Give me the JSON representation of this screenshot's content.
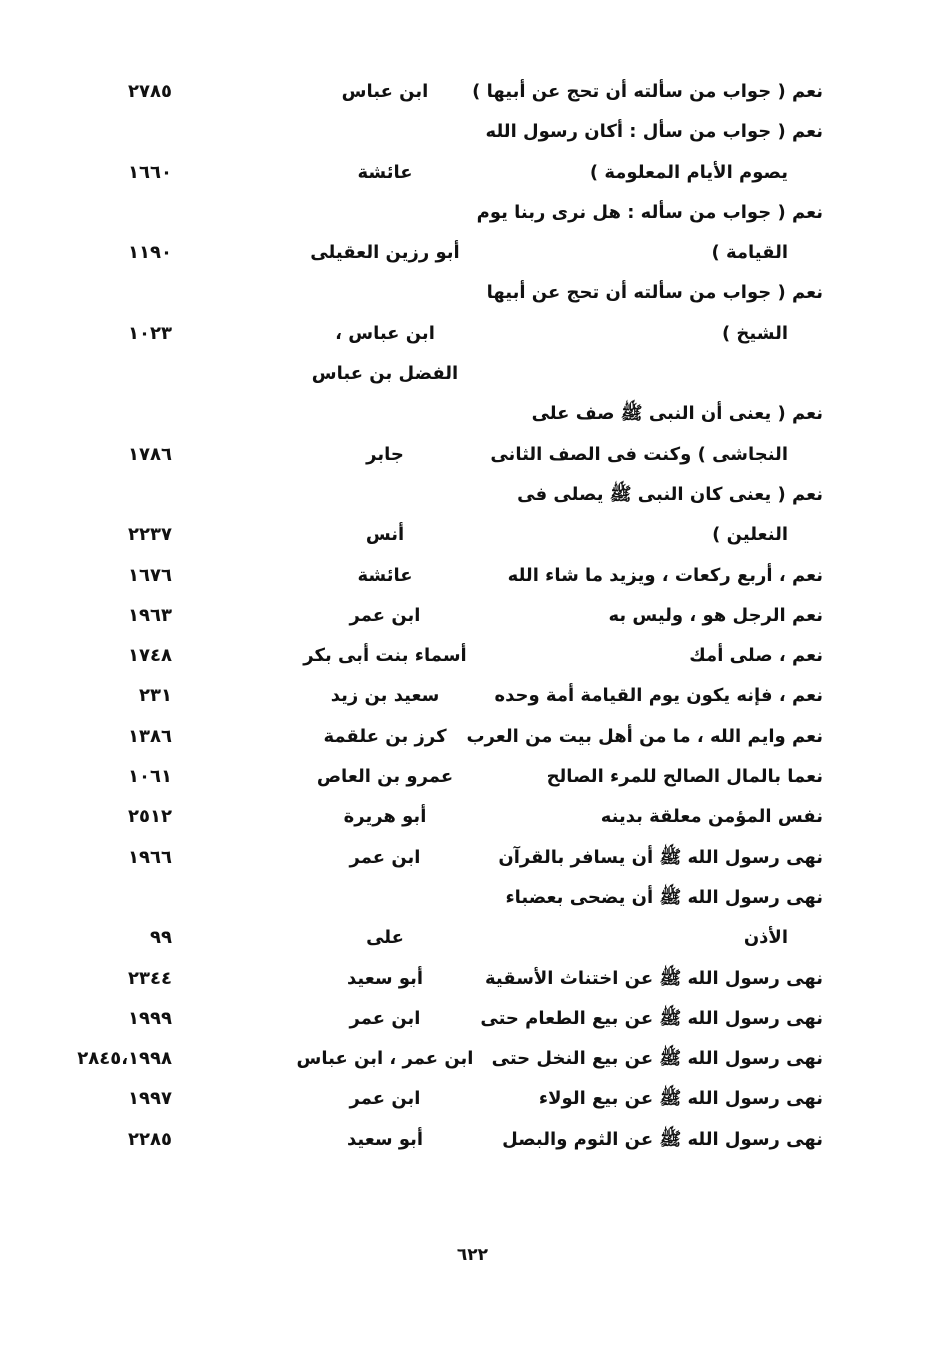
{
  "entries": [
    {
      "text": [
        "نعم ( جواب من سألته أن تحج عن أبيها )"
      ],
      "narrator": [
        "ابن عباس"
      ],
      "ref": "٢٧٨٥"
    },
    {
      "text": [
        "نعم ( جواب من سأل : أكان رسول الله",
        "يصوم الأيام المعلومة )"
      ],
      "narrator": [
        "عائشة"
      ],
      "ref": "١٦٦٠"
    },
    {
      "text": [
        "نعم ( جواب من سأله : هل نرى ربنا يوم",
        "القيامة )"
      ],
      "narrator": [
        "أبو رزين العقيلى"
      ],
      "ref": "١١٩٠"
    },
    {
      "text": [
        "نعم ( جواب من سألته أن تحج عن أبيها",
        "الشيخ )"
      ],
      "narrator": [
        "ابن عباس ،",
        "الفضل بن عباس"
      ],
      "ref": "١٠٢٣"
    },
    {
      "text": [
        "نعم ( يعنى أن النبى ﷺ صف على",
        "النجاشى ) وكنت فى الصف الثانى"
      ],
      "narrator": [
        "جابر"
      ],
      "ref": "١٧٨٦"
    },
    {
      "text": [
        "نعم ( يعنى كان النبى ﷺ يصلى فى",
        "النعلين )"
      ],
      "narrator": [
        "أنس"
      ],
      "ref": "٢٢٣٧"
    },
    {
      "text": [
        "نعم ، أربع ركعات ، ويزيد ما شاء الله"
      ],
      "narrator": [
        "عائشة"
      ],
      "ref": "١٦٧٦"
    },
    {
      "text": [
        "نعم الرجل هو ، وليس به"
      ],
      "narrator": [
        "ابن عمر"
      ],
      "ref": "١٩٦٣"
    },
    {
      "text": [
        "نعم ، صلى أمك"
      ],
      "narrator": [
        "أسماء بنت أبى بكر"
      ],
      "ref": "١٧٤٨"
    },
    {
      "text": [
        "نعم ، فإنه يكون يوم القيامة أمة وحده"
      ],
      "narrator": [
        "سعيد بن زيد"
      ],
      "ref": "٢٣١"
    },
    {
      "text": [
        "نعم وايم الله ، ما من أهل بيت من العرب"
      ],
      "narrator": [
        "كرز بن علقمة"
      ],
      "ref": "١٣٨٦"
    },
    {
      "text": [
        "نعما بالمال الصالح للمرء الصالح"
      ],
      "narrator": [
        "عمرو بن العاص"
      ],
      "ref": "١٠٦١"
    },
    {
      "text": [
        "نفس المؤمن معلقة بدينه"
      ],
      "narrator": [
        "أبو هريرة"
      ],
      "ref": "٢٥١٢"
    },
    {
      "text": [
        "نهى رسول الله ﷺ أن يسافر بالقرآن"
      ],
      "narrator": [
        "ابن عمر"
      ],
      "ref": "١٩٦٦"
    },
    {
      "text": [
        "نهى رسول الله ﷺ أن يضحى بعضباء",
        "الأذن"
      ],
      "narrator": [
        "على"
      ],
      "ref": "٩٩"
    },
    {
      "text": [
        "نهى رسول الله ﷺ عن اختناث الأسقية"
      ],
      "narrator": [
        "أبو سعيد"
      ],
      "ref": "٢٣٤٤"
    },
    {
      "text": [
        "نهى رسول الله ﷺ عن بيع الطعام حتى"
      ],
      "narrator": [
        "ابن عمر"
      ],
      "ref": "١٩٩٩"
    },
    {
      "text": [
        "نهى رسول الله ﷺ عن بيع النخل حتى"
      ],
      "narrator": [
        "ابن عمر ، ابن عباس"
      ],
      "ref": "٢٨٤٥،١٩٩٨"
    },
    {
      "text": [
        "نهى رسول الله ﷺ عن بيع الولاء"
      ],
      "narrator": [
        "ابن عمر"
      ],
      "ref": "١٩٩٧"
    },
    {
      "text": [
        "نهى رسول الله ﷺ عن الثوم والبصل"
      ],
      "narrator": [
        "أبو سعيد"
      ],
      "ref": "٢٢٨٥"
    }
  ],
  "page_number": "٦٢٢"
}
